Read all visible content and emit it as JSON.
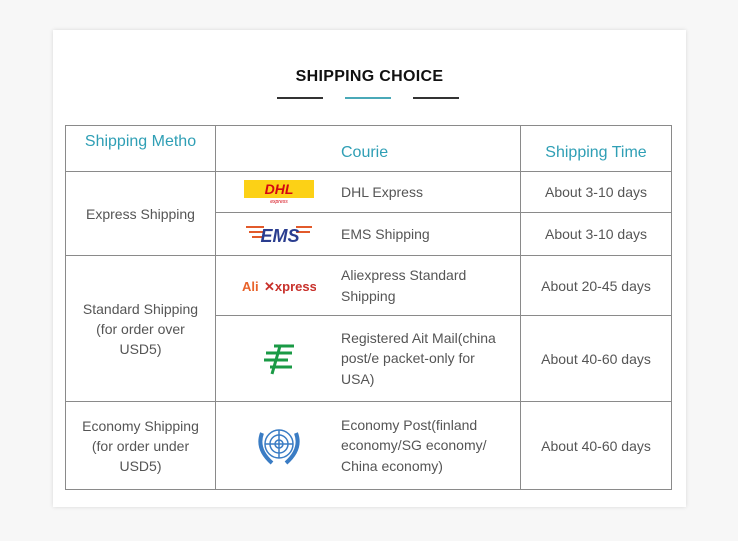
{
  "title": "SHIPPING CHOICE",
  "colors": {
    "accent": "#2f9fb5",
    "dark_bar": "#333333",
    "accent_bar": "#4aa9b8"
  },
  "headers": {
    "method": "Shipping Metho",
    "courier": "Courie",
    "time": "Shipping Time"
  },
  "groups": [
    {
      "method": "Express Shipping"
    },
    {
      "method": "Standard Shipping (for order over USD5)"
    },
    {
      "method": "Economy Shipping (for order under USD5)"
    }
  ],
  "rows": [
    {
      "logo": "dhl-logo",
      "logo_text": "DHL",
      "courier": "DHL Express",
      "time": "About 3-10 days"
    },
    {
      "logo": "ems-logo",
      "logo_text": "EMS",
      "courier": "EMS Shipping",
      "time": "About 3-10 days"
    },
    {
      "logo": "aliexpress-logo",
      "logo_text": "AliExpress",
      "courier": "Aliexpress Standard Shipping",
      "time": "About 20-45 days"
    },
    {
      "logo": "china-post-logo",
      "courier": "Registered Ait Mail(china post/e packet-only for USA)",
      "time": "About 40-60 days"
    },
    {
      "logo": "un-emblem-logo",
      "courier": "Economy Post(finland economy/SG economy/ China economy)",
      "time": "About 40-60 days"
    }
  ]
}
